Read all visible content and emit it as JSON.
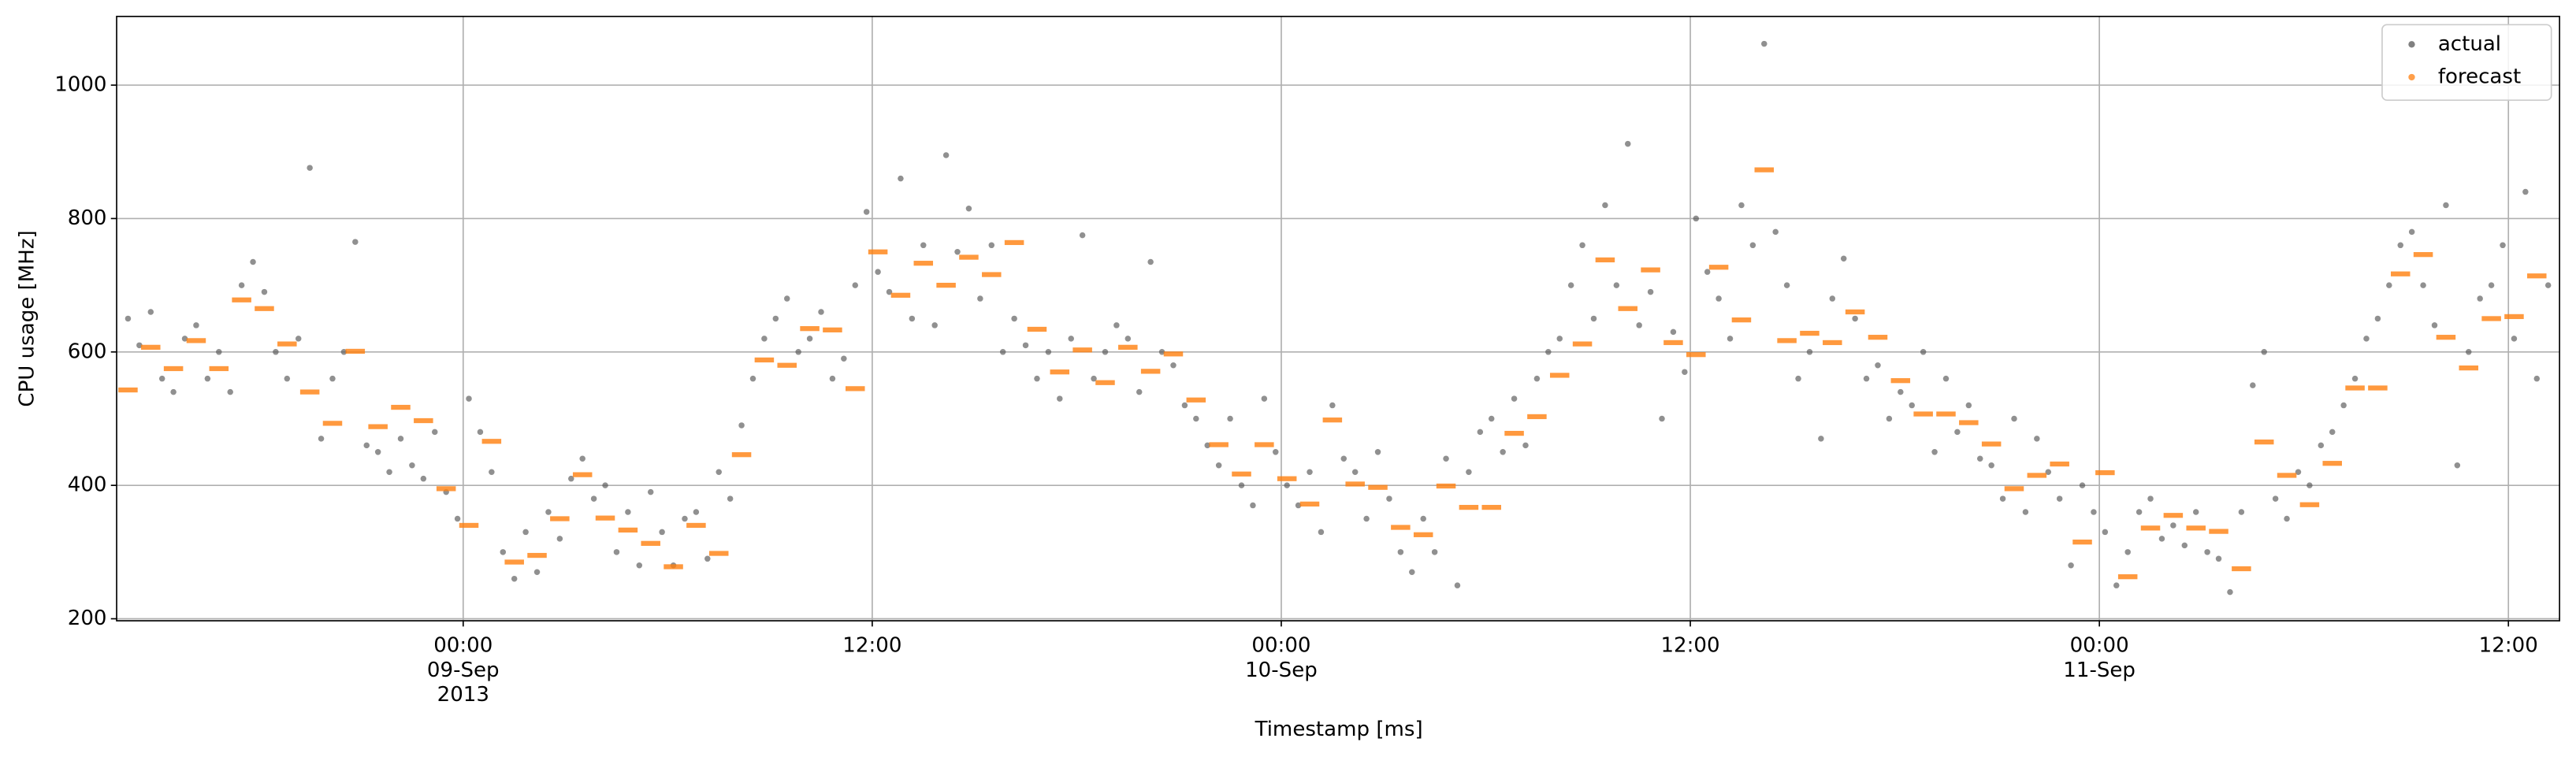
{
  "chart_data": {
    "type": "scatter",
    "xlabel": "Timestamp [ms]",
    "ylabel": "CPU usage [MHz]",
    "x": [
      1378649400000,
      1378650600000,
      1378651800000,
      1378653000000,
      1378654200000,
      1378655400000,
      1378656600000,
      1378657800000,
      1378659000000,
      1378660200000,
      1378661400000,
      1378662600000,
      1378663800000,
      1378665000000,
      1378666200000,
      1378667400000,
      1378668600000,
      1378669800000,
      1378671000000,
      1378672200000,
      1378673400000,
      1378674600000,
      1378675800000,
      1378677000000,
      1378678200000,
      1378679400000,
      1378680600000,
      1378681800000,
      1378683000000,
      1378684200000,
      1378685400000,
      1378686600000,
      1378687800000,
      1378689000000,
      1378690200000,
      1378691400000,
      1378692600000,
      1378693800000,
      1378695000000,
      1378696200000,
      1378697400000,
      1378698600000,
      1378699800000,
      1378701000000,
      1378702200000,
      1378703400000,
      1378704600000,
      1378705800000,
      1378707000000,
      1378708200000,
      1378709400000,
      1378710600000,
      1378711800000,
      1378713000000,
      1378714200000,
      1378715400000,
      1378716600000,
      1378717800000,
      1378719000000,
      1378720200000,
      1378721400000,
      1378722600000,
      1378723800000,
      1378725000000,
      1378726200000,
      1378727400000,
      1378728600000,
      1378729800000,
      1378731000000,
      1378732200000,
      1378733400000,
      1378734600000,
      1378735800000,
      1378737000000,
      1378738200000,
      1378739400000,
      1378740600000,
      1378741800000,
      1378743000000,
      1378744200000,
      1378745400000,
      1378746600000,
      1378747800000,
      1378749000000,
      1378750200000,
      1378751400000,
      1378752600000,
      1378753800000,
      1378755000000,
      1378756200000,
      1378757400000,
      1378758600000,
      1378759800000,
      1378761000000,
      1378762200000,
      1378763400000,
      1378764600000,
      1378765800000,
      1378767000000,
      1378768200000,
      1378769400000,
      1378770600000,
      1378771800000,
      1378773000000,
      1378774200000,
      1378775400000,
      1378776600000,
      1378777800000,
      1378779000000,
      1378780200000,
      1378781400000,
      1378782600000,
      1378783800000,
      1378785000000,
      1378786200000,
      1378787400000,
      1378788600000,
      1378789800000,
      1378791000000,
      1378792200000,
      1378793400000,
      1378794600000,
      1378795800000,
      1378797000000,
      1378798200000,
      1378799400000,
      1378800600000,
      1378801800000,
      1378803000000,
      1378804200000,
      1378805400000,
      1378806600000,
      1378807800000,
      1378809000000,
      1378810200000,
      1378811400000,
      1378812600000,
      1378813800000,
      1378815000000,
      1378816200000,
      1378817400000,
      1378818600000,
      1378819800000,
      1378821000000,
      1378822200000,
      1378823400000,
      1378824600000,
      1378825800000,
      1378827000000,
      1378828200000,
      1378829400000,
      1378830600000,
      1378831800000,
      1378833000000,
      1378834200000,
      1378835400000,
      1378836600000,
      1378837800000,
      1378839000000,
      1378840200000,
      1378841400000,
      1378842600000,
      1378843800000,
      1378845000000,
      1378846200000,
      1378847400000,
      1378848600000,
      1378849800000,
      1378851000000,
      1378852200000,
      1378853400000,
      1378854600000,
      1378855800000,
      1378857000000,
      1378858200000,
      1378859400000,
      1378860600000,
      1378861800000,
      1378863000000,
      1378864200000,
      1378865400000,
      1378866600000,
      1378867800000,
      1378869000000,
      1378870200000,
      1378871400000,
      1378872600000,
      1378873800000,
      1378875000000,
      1378876200000,
      1378877400000,
      1378878600000,
      1378879800000,
      1378881000000,
      1378882200000,
      1378883400000,
      1378884600000,
      1378885800000,
      1378887000000,
      1378888200000,
      1378889400000,
      1378890600000,
      1378891800000,
      1378893000000,
      1378894200000,
      1378895400000,
      1378896600000,
      1378897800000,
      1378899000000,
      1378900200000,
      1378901400000,
      1378902600000,
      1378903800000,
      1378905000000
    ],
    "series": [
      {
        "name": "actual",
        "color": "#555555",
        "values": [
          650,
          610,
          660,
          560,
          540,
          620,
          640,
          560,
          600,
          540,
          700,
          735,
          690,
          600,
          560,
          620,
          876,
          470,
          560,
          600,
          765,
          460,
          450,
          420,
          470,
          430,
          410,
          480,
          390,
          350,
          530,
          480,
          420,
          300,
          260,
          330,
          270,
          360,
          320,
          410,
          440,
          380,
          400,
          300,
          360,
          280,
          390,
          330,
          280,
          350,
          360,
          290,
          420,
          380,
          490,
          560,
          620,
          650,
          680,
          600,
          620,
          660,
          560,
          590,
          700,
          810,
          720,
          690,
          860,
          650,
          760,
          640,
          895,
          750,
          815,
          680,
          760,
          600,
          650,
          610,
          560,
          600,
          530,
          620,
          775,
          560,
          600,
          640,
          620,
          540,
          735,
          600,
          580,
          520,
          500,
          460,
          430,
          500,
          400,
          370,
          530,
          450,
          400,
          370,
          420,
          330,
          520,
          440,
          420,
          350,
          450,
          380,
          300,
          270,
          350,
          300,
          440,
          250,
          420,
          480,
          500,
          450,
          530,
          460,
          560,
          600,
          620,
          700,
          760,
          650,
          820,
          700,
          912,
          640,
          690,
          500,
          630,
          570,
          800,
          720,
          680,
          620,
          820,
          760,
          1062,
          780,
          700,
          560,
          600,
          470,
          680,
          740,
          650,
          560,
          580,
          500,
          540,
          520,
          600,
          450,
          560,
          480,
          520,
          440,
          430,
          380,
          500,
          360,
          470,
          420,
          380,
          280,
          400,
          360,
          330,
          250,
          300,
          360,
          380,
          320,
          340,
          310,
          360,
          300,
          290,
          240,
          360,
          550,
          600,
          380,
          350,
          420,
          400,
          460,
          480,
          520,
          560,
          620,
          650,
          700,
          760,
          780,
          700,
          640,
          820,
          430,
          600,
          680,
          700,
          760,
          620,
          840,
          560,
          700
        ]
      },
      {
        "name": "forecast",
        "color": "#ff7f0e",
        "values": [
          543,
          null,
          607,
          null,
          575,
          null,
          617,
          null,
          575,
          null,
          678,
          null,
          665,
          null,
          612,
          null,
          540,
          null,
          493,
          null,
          601,
          null,
          488,
          null,
          517,
          null,
          497,
          null,
          395,
          null,
          340,
          null,
          466,
          null,
          285,
          null,
          295,
          null,
          350,
          null,
          416,
          null,
          351,
          null,
          333,
          null,
          313,
          null,
          278,
          null,
          340,
          null,
          298,
          null,
          446,
          null,
          588,
          null,
          580,
          null,
          635,
          null,
          633,
          null,
          545,
          null,
          750,
          null,
          685,
          null,
          733,
          null,
          700,
          null,
          742,
          null,
          716,
          null,
          764,
          null,
          634,
          null,
          570,
          null,
          603,
          null,
          554,
          null,
          607,
          null,
          571,
          null,
          597,
          null,
          528,
          null,
          461,
          null,
          417,
          null,
          461,
          null,
          410,
          null,
          372,
          null,
          498,
          null,
          402,
          null,
          397,
          null,
          337,
          null,
          326,
          null,
          399,
          null,
          367,
          null,
          367,
          null,
          478,
          null,
          503,
          null,
          565,
          null,
          612,
          null,
          738,
          null,
          665,
          null,
          723,
          null,
          614,
          null,
          596,
          null,
          727,
          null,
          648,
          null,
          873,
          null,
          617,
          null,
          628,
          null,
          614,
          null,
          660,
          null,
          622,
          null,
          557,
          null,
          507,
          null,
          507,
          null,
          494,
          null,
          462,
          null,
          395,
          null,
          415,
          null,
          432,
          null,
          315,
          null,
          419,
          null,
          263,
          null,
          336,
          null,
          355,
          null,
          336,
          null,
          331,
          null,
          275,
          null,
          465,
          null,
          415,
          null,
          371,
          null,
          433,
          null,
          546,
          null,
          546,
          null,
          717,
          null,
          746,
          null,
          622,
          null,
          576,
          null,
          650,
          null,
          653,
          null,
          714,
          null
        ]
      }
    ],
    "xlim": [
      1378648200000,
      1378906200000
    ],
    "ylim": [
      197,
      1103
    ],
    "xticks": [
      {
        "value": 1378684800000,
        "label": "00:00\n09-Sep\n2013"
      },
      {
        "value": 1378728000000,
        "label": "12:00"
      },
      {
        "value": 1378771200000,
        "label": "00:00\n10-Sep"
      },
      {
        "value": 1378814400000,
        "label": "12:00"
      },
      {
        "value": 1378857600000,
        "label": "00:00\n11-Sep"
      },
      {
        "value": 1378900800000,
        "label": "12:00"
      }
    ],
    "yticks": [
      200,
      400,
      600,
      800,
      1000
    ],
    "grid": true,
    "legend": "upper right"
  }
}
